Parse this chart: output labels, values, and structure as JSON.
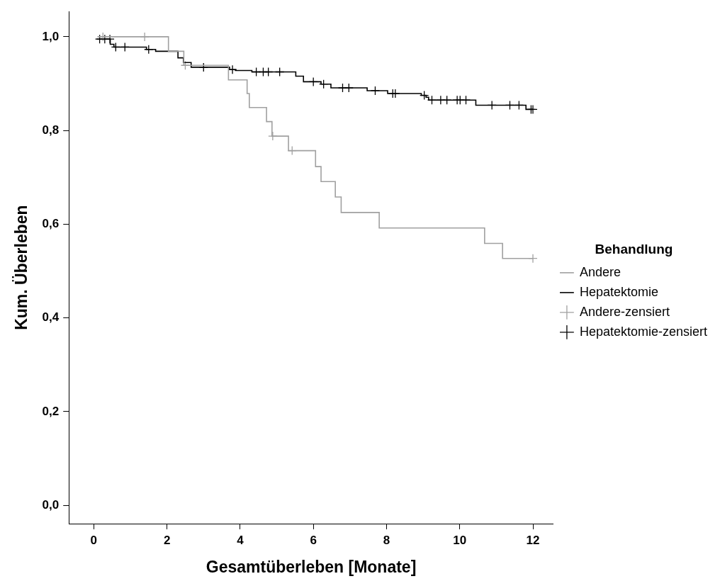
{
  "chart_data": {
    "type": "step",
    "xlabel": "Gesamtüberleben [Monate]",
    "ylabel": "Kum. Überleben",
    "legend_title": "Behandlung",
    "legend": "right",
    "grid": false,
    "xlim": [
      -0.68,
      12.56
    ],
    "xticks": [
      0,
      2,
      4,
      6,
      8,
      10,
      12
    ],
    "ylim": [
      -0.039,
      1.054
    ],
    "yticks": [
      {
        "value": 0,
        "label": "0,0"
      },
      {
        "value": 0.2,
        "label": "0,2"
      },
      {
        "value": 0.4,
        "label": "0,4"
      },
      {
        "value": 0.6,
        "label": "0,6"
      },
      {
        "value": 0.8,
        "label": "0,8"
      },
      {
        "value": 1,
        "label": "1,0"
      }
    ],
    "series": [
      {
        "name": "Andere",
        "type": "step",
        "color": "#a0a0a0",
        "x": [
          0.1,
          2.04,
          2.46,
          3.68,
          4.19,
          4.25,
          4.72,
          4.87,
          5.32,
          6.06,
          6.21,
          6.6,
          6.76,
          7.8,
          10.68,
          11.17,
          12
        ],
        "values": [
          1,
          0.969,
          0.939,
          0.908,
          0.879,
          0.849,
          0.819,
          0.788,
          0.757,
          0.723,
          0.691,
          0.658,
          0.625,
          0.592,
          0.559,
          0.527,
          0.527
        ]
      },
      {
        "name": "Hepatektomie",
        "type": "step",
        "color": "#000000",
        "x": [
          0.08,
          0.45,
          0.55,
          1.44,
          1.69,
          2.3,
          2.45,
          2.66,
          3.71,
          3.87,
          4.32,
          5.52,
          5.73,
          6.21,
          6.48,
          7.47,
          8.03,
          8.95,
          9.08,
          9.15,
          10.44,
          11.81,
          12
        ],
        "values": [
          0.995,
          0.984,
          0.978,
          0.973,
          0.969,
          0.955,
          0.945,
          0.935,
          0.93,
          0.928,
          0.925,
          0.916,
          0.904,
          0.899,
          0.891,
          0.885,
          0.879,
          0.875,
          0.871,
          0.865,
          0.854,
          0.845,
          0.845
        ]
      },
      {
        "name": "Andere-zensiert",
        "type": "scatter",
        "marker": "cross",
        "color": "#a0a0a0",
        "x": [
          0.25,
          1.39,
          2.5,
          4.89,
          5.42,
          12
        ],
        "values": [
          1,
          1,
          0.939,
          0.788,
          0.757,
          0.527
        ]
      },
      {
        "name": "Hepatektomie-zensiert",
        "type": "scatter",
        "marker": "cross",
        "color": "#000000",
        "x": [
          0.16,
          0.3,
          0.44,
          0.6,
          0.85,
          1.5,
          3,
          3.79,
          4.44,
          4.63,
          4.77,
          5.08,
          6,
          6.28,
          6.8,
          6.97,
          7.69,
          8.17,
          8.24,
          9.03,
          9.24,
          9.48,
          9.65,
          9.93,
          10.01,
          10.17,
          10.88,
          11.37,
          11.62,
          11.95,
          12
        ],
        "values": [
          0.995,
          0.995,
          0.995,
          0.978,
          0.978,
          0.973,
          0.935,
          0.93,
          0.925,
          0.925,
          0.925,
          0.925,
          0.904,
          0.899,
          0.891,
          0.891,
          0.885,
          0.879,
          0.879,
          0.875,
          0.865,
          0.865,
          0.865,
          0.865,
          0.865,
          0.865,
          0.854,
          0.854,
          0.854,
          0.845,
          0.845
        ]
      }
    ]
  }
}
